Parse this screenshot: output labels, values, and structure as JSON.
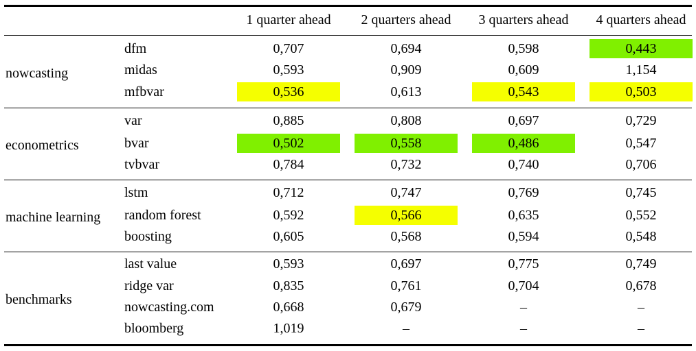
{
  "colors": {
    "best": "#80f000",
    "second": "#f5ff00"
  },
  "header": [
    "1 quarter ahead",
    "2 quarters ahead",
    "3 quarters ahead",
    "4 quarters ahead"
  ],
  "groups": [
    {
      "name": "nowcasting",
      "rows": [
        {
          "model": "dfm",
          "values": [
            "0,707",
            "0,694",
            "0,598",
            "0,443"
          ],
          "highlight": [
            "",
            "",
            "",
            "best"
          ]
        },
        {
          "model": "midas",
          "values": [
            "0,593",
            "0,909",
            "0,609",
            "1,154"
          ],
          "highlight": [
            "",
            "",
            "",
            ""
          ]
        },
        {
          "model": "mfbvar",
          "values": [
            "0,536",
            "0,613",
            "0,543",
            "0,503"
          ],
          "highlight": [
            "second",
            "",
            "second",
            "second"
          ]
        }
      ]
    },
    {
      "name": "econometrics",
      "rows": [
        {
          "model": "var",
          "values": [
            "0,885",
            "0,808",
            "0,697",
            "0,729"
          ],
          "highlight": [
            "",
            "",
            "",
            ""
          ]
        },
        {
          "model": "bvar",
          "values": [
            "0,502",
            "0,558",
            "0,486",
            "0,547"
          ],
          "highlight": [
            "best",
            "best",
            "best",
            ""
          ]
        },
        {
          "model": "tvbvar",
          "values": [
            "0,784",
            "0,732",
            "0,740",
            "0,706"
          ],
          "highlight": [
            "",
            "",
            "",
            ""
          ]
        }
      ]
    },
    {
      "name": "machine learning",
      "rows": [
        {
          "model": "lstm",
          "values": [
            "0,712",
            "0,747",
            "0,769",
            "0,745"
          ],
          "highlight": [
            "",
            "",
            "",
            ""
          ]
        },
        {
          "model": "random forest",
          "values": [
            "0,592",
            "0,566",
            "0,635",
            "0,552"
          ],
          "highlight": [
            "",
            "second",
            "",
            ""
          ]
        },
        {
          "model": "boosting",
          "values": [
            "0,605",
            "0,568",
            "0,594",
            "0,548"
          ],
          "highlight": [
            "",
            "",
            "",
            ""
          ]
        }
      ]
    },
    {
      "name": "benchmarks",
      "rows": [
        {
          "model": "last value",
          "values": [
            "0,593",
            "0,697",
            "0,775",
            "0,749"
          ],
          "highlight": [
            "",
            "",
            "",
            ""
          ]
        },
        {
          "model": "ridge var",
          "values": [
            "0,835",
            "0,761",
            "0,704",
            "0,678"
          ],
          "highlight": [
            "",
            "",
            "",
            ""
          ]
        },
        {
          "model": "nowcasting.com",
          "values": [
            "0,668",
            "0,679",
            "–",
            "–"
          ],
          "highlight": [
            "",
            "",
            "",
            ""
          ]
        },
        {
          "model": "bloomberg",
          "values": [
            "1,019",
            "–",
            "–",
            "–"
          ],
          "highlight": [
            "",
            "",
            "",
            ""
          ]
        }
      ]
    }
  ]
}
